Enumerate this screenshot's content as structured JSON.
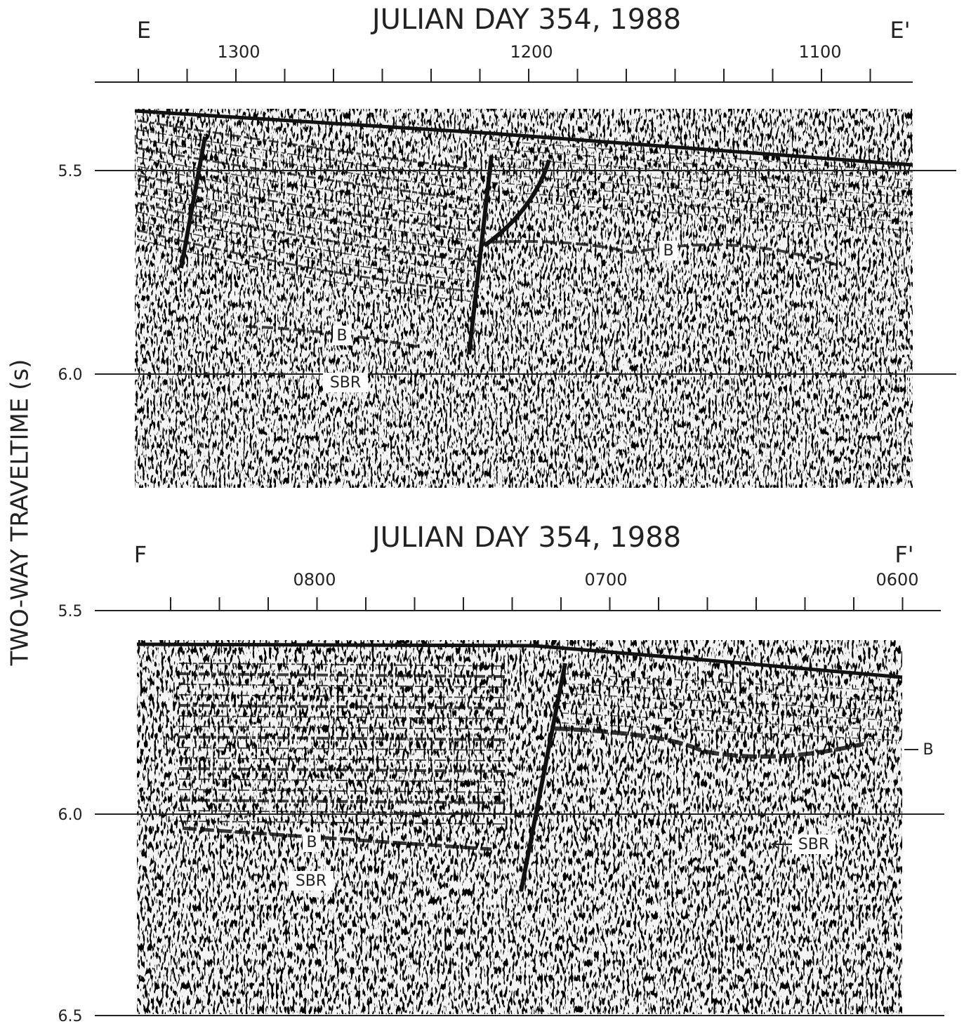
{
  "y_axis": {
    "label": "TWO-WAY TRAVELTIME (s)"
  },
  "panels": [
    {
      "title": "JULIAN DAY 354, 1988",
      "left_label": "E",
      "right_label": "E'",
      "time_labels": [
        "1300",
        "1200",
        "1100"
      ],
      "depth_labels": [
        "5.5",
        "6.0"
      ],
      "annotations": [
        "B",
        "SBR",
        "B"
      ]
    },
    {
      "title": "JULIAN DAY 354, 1988",
      "left_label": "F",
      "right_label": "F'",
      "time_labels": [
        "0800",
        "0700",
        "0600"
      ],
      "depth_labels": [
        "5.5",
        "6.0",
        "6.5"
      ],
      "annotations": [
        "B",
        "SBR",
        "B",
        "SBR"
      ]
    }
  ]
}
